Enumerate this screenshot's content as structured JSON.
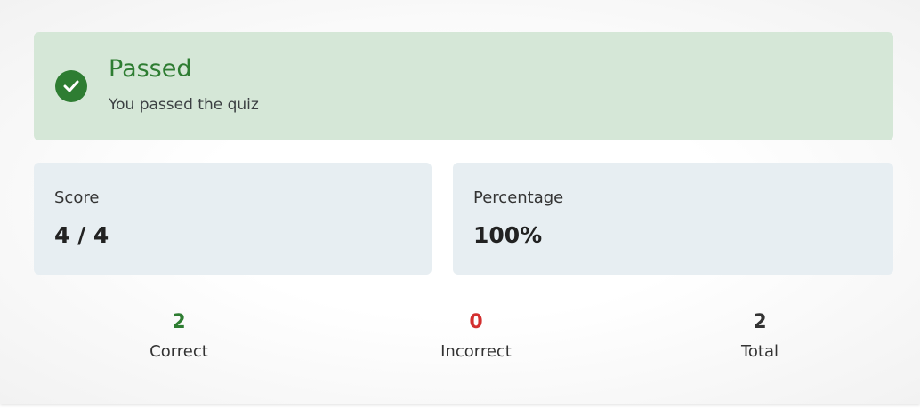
{
  "result": {
    "title": "Passed",
    "message": "You passed the quiz",
    "icon": "check-circle-icon",
    "color": "#2e7d32"
  },
  "score": {
    "label": "Score",
    "value": "4 / 4"
  },
  "percentage": {
    "label": "Percentage",
    "value": "100%"
  },
  "stats": [
    {
      "value": "2",
      "label": "Correct",
      "color": "#2e7d32"
    },
    {
      "value": "0",
      "label": "Incorrect",
      "color": "#d32f2f"
    },
    {
      "value": "2",
      "label": "Total",
      "color": "#333333"
    }
  ]
}
